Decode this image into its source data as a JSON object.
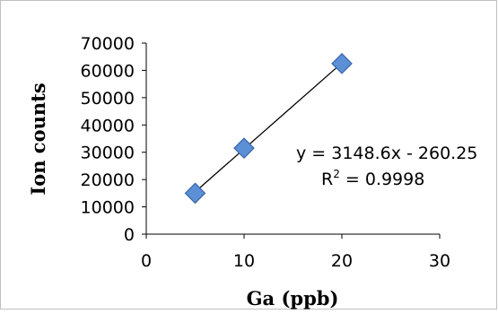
{
  "chart_data": {
    "type": "scatter",
    "title": "",
    "xlabel": "Ga (ppb)",
    "ylabel": "Ion counts",
    "xlim": [
      0,
      30
    ],
    "ylim": [
      0,
      70000
    ],
    "x_ticks": [
      "0",
      "10",
      "20",
      "30"
    ],
    "y_ticks": [
      "0",
      "10000",
      "20000",
      "30000",
      "40000",
      "50000",
      "60000",
      "70000"
    ],
    "grid": false,
    "legend": "none",
    "series": [
      {
        "points": [
          {
            "x": 5,
            "y": 15000
          },
          {
            "x": 10,
            "y": 31500
          },
          {
            "x": 20,
            "y": 62500
          }
        ],
        "marker": "diamond",
        "marker_fill": "#5b8fd6",
        "marker_edge": "#3a66a8"
      }
    ],
    "trendline": {
      "type": "linear",
      "slope": 3148.6,
      "intercept": -260.25,
      "x_range": [
        5,
        20
      ],
      "color": "#000000",
      "equation_label": "y = 3148.6x - 260.25",
      "r2_prefix": "R",
      "r2_exponent": "2",
      "r2_suffix": " = 0.9998"
    }
  }
}
